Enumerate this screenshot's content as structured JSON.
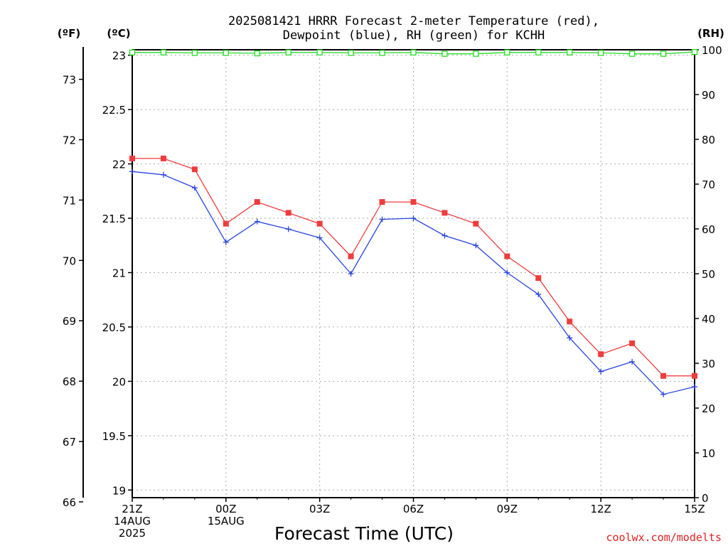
{
  "title_line1": "2025081421 HRRR Forecast 2-meter Temperature (red),",
  "title_line2": "Dewpoint (blue), RH (green) for KCHH",
  "label_fahrenheit": "(ºF)",
  "label_celsius": "(ºC)",
  "label_rh": "(RH)",
  "x_axis_title": "Forecast Time (UTC)",
  "credit": "coolwx.com/modelts",
  "colors": {
    "temperature": "#f03c3c",
    "dewpoint": "#2845e0",
    "rh": "#22dd22",
    "grid": "#aaaaaa"
  },
  "chart_data": {
    "type": "line",
    "x": [
      0,
      1,
      2,
      3,
      4,
      5,
      6,
      7,
      8,
      9,
      10,
      11,
      12,
      13,
      14,
      15,
      16,
      17,
      18
    ],
    "xlim": [
      0,
      18
    ],
    "x_ticks": [
      {
        "x": 0,
        "lines": [
          "21Z",
          "14AUG",
          "2025"
        ]
      },
      {
        "x": 3,
        "lines": [
          "00Z",
          "15AUG"
        ]
      },
      {
        "x": 6,
        "lines": [
          "03Z"
        ]
      },
      {
        "x": 9,
        "lines": [
          "06Z"
        ]
      },
      {
        "x": 12,
        "lines": [
          "09Z"
        ]
      },
      {
        "x": 15,
        "lines": [
          "12Z"
        ]
      },
      {
        "x": 18,
        "lines": [
          "15Z"
        ]
      }
    ],
    "celsius_axis": {
      "ylim": [
        18.93,
        23.05
      ],
      "ticks": [
        "19",
        "19.5",
        "20",
        "20.5",
        "21",
        "21.5",
        "22",
        "22.5",
        "23"
      ]
    },
    "fahrenheit_axis": {
      "ylim": [
        66.07,
        73.49
      ],
      "ticks": [
        "66",
        "67",
        "68",
        "69",
        "70",
        "71",
        "72",
        "73"
      ]
    },
    "rh_axis": {
      "ylim": [
        0,
        100
      ],
      "ticks": [
        "0",
        "10",
        "20",
        "30",
        "40",
        "50",
        "60",
        "70",
        "80",
        "90",
        "100"
      ]
    },
    "grid": true,
    "series": [
      {
        "key": "temperature",
        "axis": "celsius",
        "marker": "filled-square",
        "values": [
          22.05,
          22.05,
          21.95,
          21.45,
          21.65,
          21.55,
          21.45,
          21.15,
          21.65,
          21.65,
          21.55,
          21.45,
          21.15,
          20.95,
          20.55,
          20.25,
          20.35,
          20.05,
          20.05
        ]
      },
      {
        "key": "dewpoint",
        "axis": "celsius",
        "marker": "plus",
        "values": [
          21.93,
          21.9,
          21.78,
          21.28,
          21.47,
          21.4,
          21.32,
          20.99,
          21.49,
          21.5,
          21.34,
          21.25,
          21.0,
          20.8,
          20.4,
          20.09,
          20.18,
          19.88,
          19.95
        ]
      },
      {
        "key": "rh",
        "axis": "rh",
        "marker": "open-square",
        "values": [
          99.4,
          99.4,
          99.3,
          99.3,
          99.2,
          99.4,
          99.4,
          99.3,
          99.3,
          99.4,
          99.1,
          99.1,
          99.4,
          99.4,
          99.4,
          99.3,
          99.1,
          99.1,
          99.5
        ]
      }
    ]
  }
}
